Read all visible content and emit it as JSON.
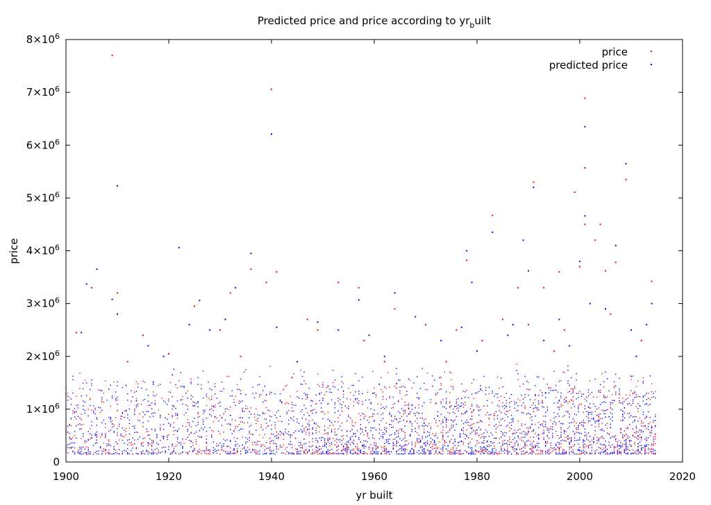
{
  "chart_data": {
    "type": "scatter",
    "title": "Predicted price and price according to yr",
    "title_subscript": "b",
    "title_suffix": "uilt",
    "xlabel": "yr built",
    "ylabel": "price",
    "xlim": [
      1900,
      2020
    ],
    "ylim": [
      0,
      8000000
    ],
    "x_ticks": [
      1900,
      1920,
      1940,
      1960,
      1980,
      2000,
      2020
    ],
    "y_ticks": [
      {
        "value": 0,
        "mantissa": "0",
        "exponent": ""
      },
      {
        "value": 1000000,
        "mantissa": "1×10",
        "exponent": "6"
      },
      {
        "value": 2000000,
        "mantissa": "2×10",
        "exponent": "6"
      },
      {
        "value": 3000000,
        "mantissa": "3×10",
        "exponent": "6"
      },
      {
        "value": 4000000,
        "mantissa": "4×10",
        "exponent": "6"
      },
      {
        "value": 5000000,
        "mantissa": "5×10",
        "exponent": "6"
      },
      {
        "value": 6000000,
        "mantissa": "6×10",
        "exponent": "6"
      },
      {
        "value": 7000000,
        "mantissa": "7×10",
        "exponent": "6"
      },
      {
        "value": 8000000,
        "mantissa": "8×10",
        "exponent": "6"
      }
    ],
    "grid": false,
    "legend_position": "top-right",
    "series": [
      {
        "name": "price",
        "color": "#ff0000",
        "points": [
          [
            1909,
            7700000
          ],
          [
            1940,
            7060000
          ],
          [
            2001,
            6890000
          ],
          [
            2009,
            5350000
          ],
          [
            1991,
            5300000
          ],
          [
            2001,
            5570000
          ],
          [
            1999,
            5110000
          ],
          [
            1983,
            4670000
          ],
          [
            2001,
            4500000
          ],
          [
            2004,
            4500000
          ],
          [
            1941,
            3600000
          ],
          [
            1936,
            3650000
          ],
          [
            1910,
            3200000
          ],
          [
            1905,
            3300000
          ],
          [
            1932,
            3200000
          ],
          [
            1939,
            3400000
          ],
          [
            1957,
            3300000
          ],
          [
            2014,
            3420000
          ],
          [
            2003,
            4200000
          ],
          [
            1978,
            3820000
          ],
          [
            1988,
            3300000
          ],
          [
            1993,
            3300000
          ],
          [
            1996,
            3600000
          ],
          [
            2005,
            3620000
          ],
          [
            2007,
            3780000
          ],
          [
            1925,
            2950000
          ],
          [
            1947,
            2700000
          ],
          [
            1953,
            3400000
          ],
          [
            1970,
            2600000
          ],
          [
            1985,
            2700000
          ],
          [
            1902,
            2450000
          ],
          [
            1915,
            2400000
          ],
          [
            1920,
            2050000
          ],
          [
            1930,
            2500000
          ],
          [
            1949,
            2500000
          ],
          [
            1958,
            2300000
          ],
          [
            1964,
            2900000
          ],
          [
            1976,
            2500000
          ],
          [
            1981,
            2300000
          ],
          [
            1990,
            2600000
          ],
          [
            1997,
            2500000
          ],
          [
            2000,
            3700000
          ],
          [
            2006,
            2800000
          ],
          [
            2012,
            2300000
          ],
          [
            1912,
            1900000
          ],
          [
            1934,
            2000000
          ],
          [
            1944,
            1600000
          ],
          [
            1962,
            1900000
          ],
          [
            1974,
            1900000
          ],
          [
            1995,
            2100000
          ]
        ]
      },
      {
        "name": "predicted price",
        "color": "#0000ff",
        "points": [
          [
            1910,
            5230000
          ],
          [
            1940,
            6210000
          ],
          [
            2001,
            6350000
          ],
          [
            2009,
            5650000
          ],
          [
            1991,
            5200000
          ],
          [
            2001,
            4660000
          ],
          [
            1983,
            4350000
          ],
          [
            1989,
            4200000
          ],
          [
            1922,
            4060000
          ],
          [
            2007,
            4100000
          ],
          [
            1936,
            3950000
          ],
          [
            1978,
            4000000
          ],
          [
            1906,
            3650000
          ],
          [
            2000,
            3800000
          ],
          [
            1990,
            3620000
          ],
          [
            1904,
            3370000
          ],
          [
            1933,
            3300000
          ],
          [
            1979,
            3400000
          ],
          [
            1909,
            3080000
          ],
          [
            1926,
            3060000
          ],
          [
            1964,
            3200000
          ],
          [
            1957,
            3070000
          ],
          [
            2014,
            3000000
          ],
          [
            1910,
            2800000
          ],
          [
            1924,
            2600000
          ],
          [
            1931,
            2700000
          ],
          [
            1949,
            2650000
          ],
          [
            1953,
            2500000
          ],
          [
            1968,
            2750000
          ],
          [
            1977,
            2550000
          ],
          [
            1987,
            2600000
          ],
          [
            1996,
            2700000
          ],
          [
            2005,
            2900000
          ],
          [
            2013,
            2600000
          ],
          [
            1903,
            2450000
          ],
          [
            1916,
            2200000
          ],
          [
            1928,
            2500000
          ],
          [
            1941,
            2550000
          ],
          [
            1959,
            2400000
          ],
          [
            1973,
            2300000
          ],
          [
            1986,
            2400000
          ],
          [
            1993,
            2300000
          ],
          [
            2002,
            3000000
          ],
          [
            2010,
            2500000
          ],
          [
            1919,
            2000000
          ],
          [
            1945,
            1900000
          ],
          [
            1962,
            2000000
          ],
          [
            1980,
            2100000
          ],
          [
            1998,
            2200000
          ],
          [
            2011,
            2000000
          ]
        ]
      }
    ],
    "dense_band": {
      "x_start": 1900,
      "x_end": 2014,
      "typical_low": 150000,
      "typical_high": 1100000
    }
  }
}
